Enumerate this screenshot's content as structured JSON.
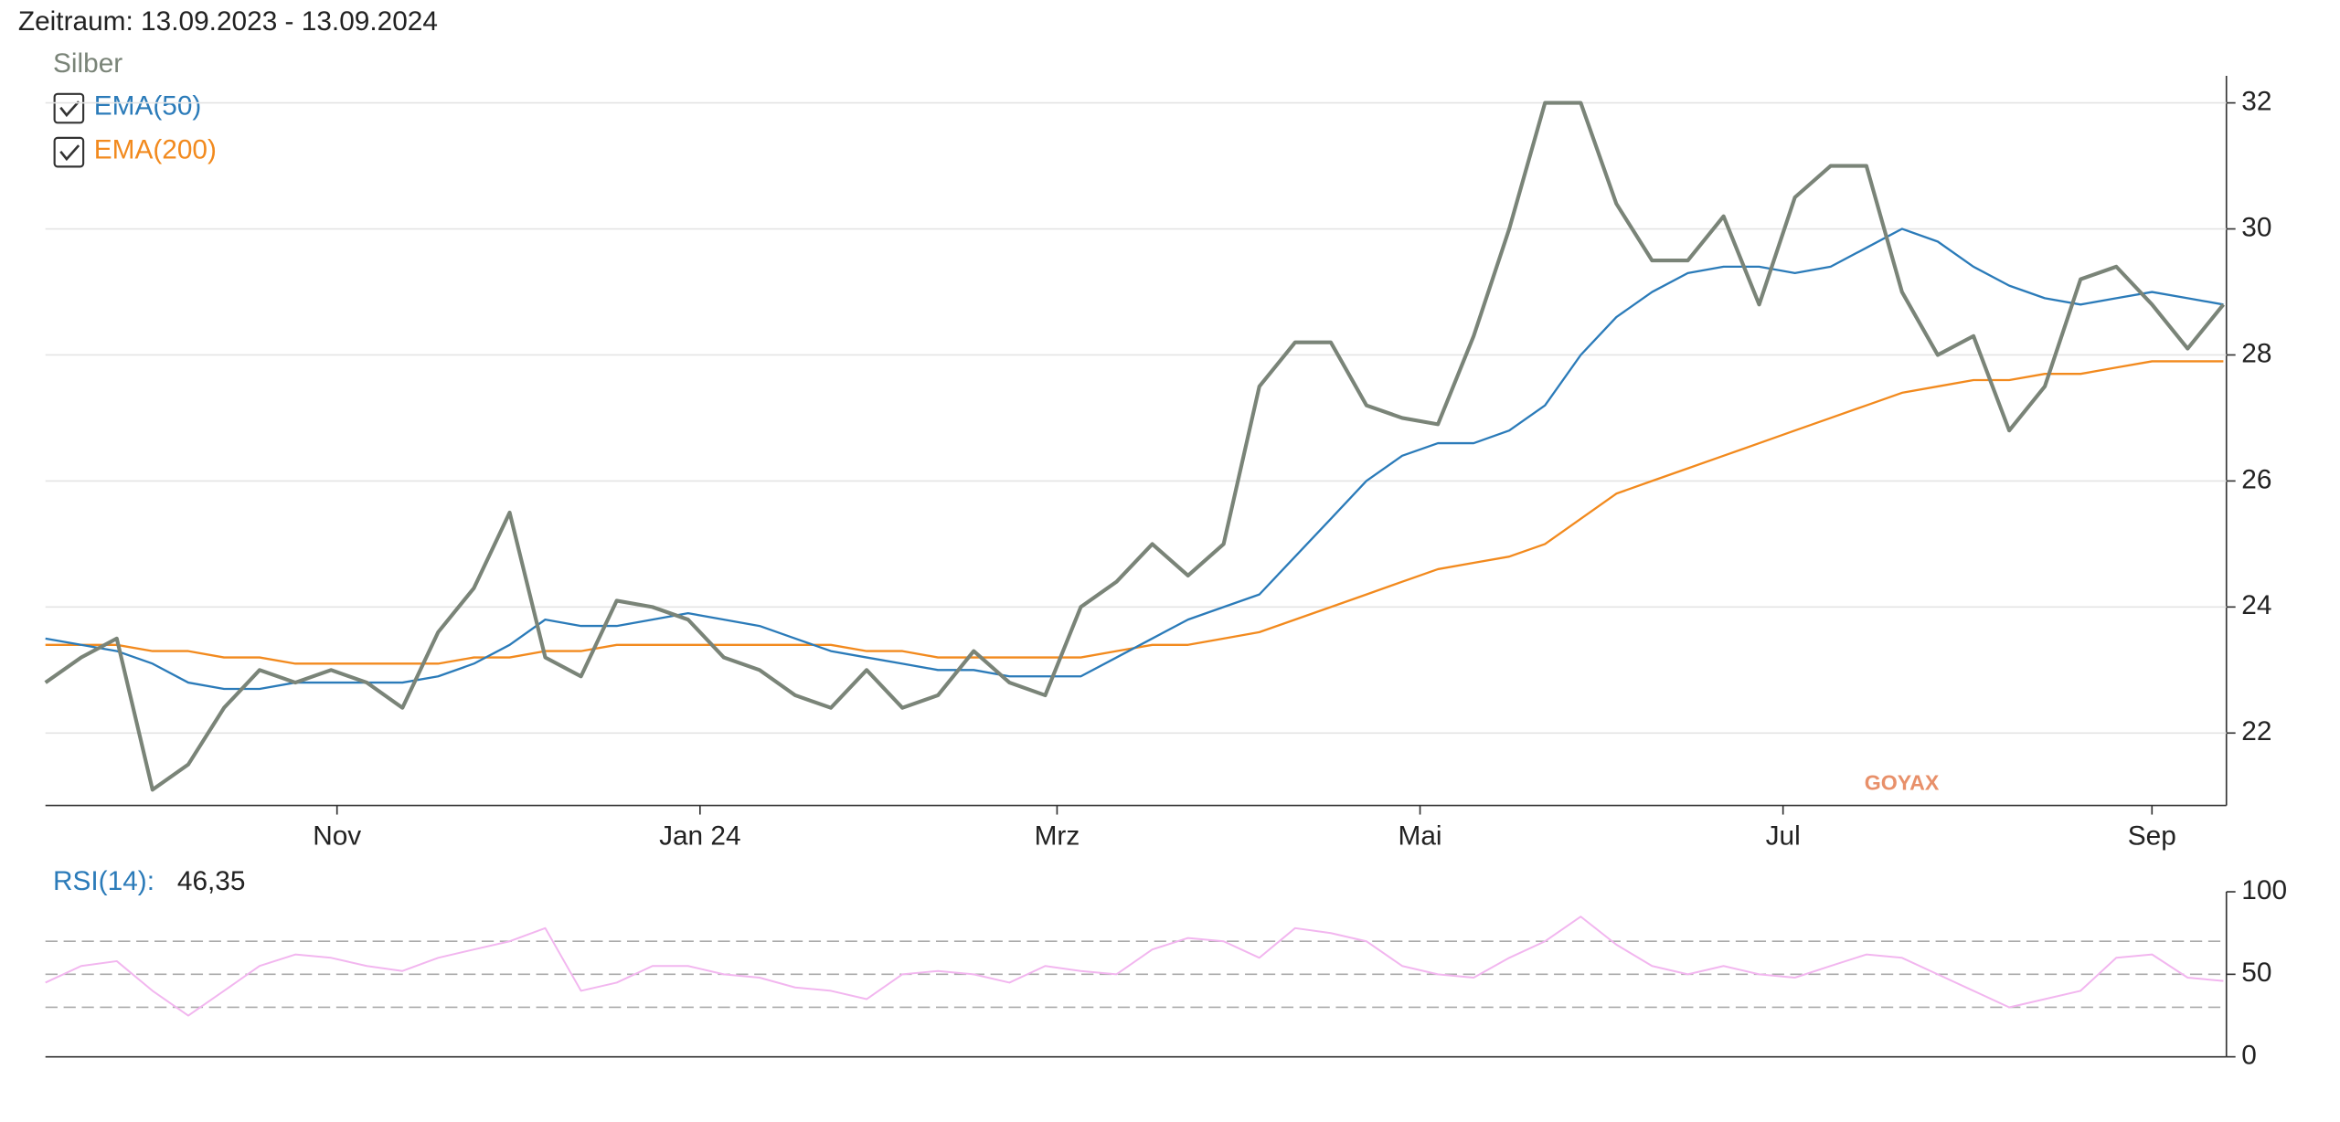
{
  "chart_data": [
    {
      "type": "line",
      "title": "Zeitraum: 13.09.2023 - 13.09.2024",
      "watermark": "GOYAX",
      "x": [
        0,
        6,
        12,
        18,
        24,
        30,
        36,
        42,
        48,
        54,
        60,
        66,
        72,
        78,
        84,
        90,
        96,
        102,
        108,
        114,
        120,
        126,
        132,
        138,
        144,
        150,
        156,
        162,
        168,
        174,
        180,
        186,
        192,
        198,
        204,
        210,
        216,
        222,
        228,
        234,
        240,
        246,
        252,
        258,
        264,
        270,
        276,
        282,
        288,
        294,
        300,
        306,
        312,
        318,
        324,
        330,
        336,
        342,
        348,
        354,
        360,
        366
      ],
      "xlim": [
        0,
        366
      ],
      "xticks": [
        {
          "value": 49,
          "label": "Nov"
        },
        {
          "value": 110,
          "label": "Jan 24"
        },
        {
          "value": 170,
          "label": "Mrz"
        },
        {
          "value": 231,
          "label": "Mai"
        },
        {
          "value": 292,
          "label": "Jul"
        },
        {
          "value": 354,
          "label": "Sep"
        }
      ],
      "ylim": [
        20.85,
        32.43
      ],
      "yticks": [
        22,
        24,
        26,
        28,
        30,
        32
      ],
      "grid": true,
      "series": [
        {
          "name": "Silber",
          "color": "#7a8478",
          "values": [
            22.8,
            23.2,
            23.5,
            21.1,
            21.5,
            22.4,
            23.0,
            22.8,
            23.0,
            22.8,
            22.4,
            23.6,
            24.3,
            25.5,
            23.2,
            22.9,
            24.1,
            24.0,
            23.8,
            23.2,
            23.0,
            22.6,
            22.4,
            23.0,
            22.4,
            22.6,
            23.3,
            22.8,
            22.6,
            24.0,
            24.4,
            25.0,
            24.5,
            25.0,
            27.5,
            28.2,
            28.2,
            27.2,
            27.0,
            26.9,
            28.3,
            30.0,
            32.0,
            32.0,
            30.4,
            29.5,
            29.5,
            30.2,
            28.8,
            30.5,
            31.0,
            31.0,
            29.0,
            28.0,
            28.3,
            26.8,
            27.5,
            29.2,
            29.4,
            28.8,
            28.1,
            28.8
          ]
        },
        {
          "name": "EMA(50)",
          "color": "#2b7bb9",
          "values": [
            23.5,
            23.4,
            23.3,
            23.1,
            22.8,
            22.7,
            22.7,
            22.8,
            22.8,
            22.8,
            22.8,
            22.9,
            23.1,
            23.4,
            23.8,
            23.7,
            23.7,
            23.8,
            23.9,
            23.8,
            23.7,
            23.5,
            23.3,
            23.2,
            23.1,
            23.0,
            23.0,
            22.9,
            22.9,
            22.9,
            23.2,
            23.5,
            23.8,
            24.0,
            24.2,
            24.8,
            25.4,
            26.0,
            26.4,
            26.6,
            26.6,
            26.8,
            27.2,
            28.0,
            28.6,
            29.0,
            29.3,
            29.4,
            29.4,
            29.3,
            29.4,
            29.7,
            30.0,
            29.8,
            29.4,
            29.1,
            28.9,
            28.8,
            28.9,
            29.0,
            28.9,
            28.8
          ]
        },
        {
          "name": "EMA(200)",
          "color": "#f28a1e",
          "values": [
            23.4,
            23.4,
            23.4,
            23.3,
            23.3,
            23.2,
            23.2,
            23.1,
            23.1,
            23.1,
            23.1,
            23.1,
            23.2,
            23.2,
            23.3,
            23.3,
            23.4,
            23.4,
            23.4,
            23.4,
            23.4,
            23.4,
            23.4,
            23.3,
            23.3,
            23.2,
            23.2,
            23.2,
            23.2,
            23.2,
            23.3,
            23.4,
            23.4,
            23.5,
            23.6,
            23.8,
            24.0,
            24.2,
            24.4,
            24.6,
            24.7,
            24.8,
            25.0,
            25.4,
            25.8,
            26.0,
            26.2,
            26.4,
            26.6,
            26.8,
            27.0,
            27.2,
            27.4,
            27.5,
            27.6,
            27.6,
            27.7,
            27.7,
            27.8,
            27.9,
            27.9,
            27.9
          ]
        }
      ]
    },
    {
      "type": "line",
      "title": "RSI(14):",
      "annotation": "46,35",
      "xlim": [
        0,
        366
      ],
      "ylim": [
        0,
        100
      ],
      "yticks": [
        0,
        50,
        100
      ],
      "reference_lines": [
        30,
        50,
        70
      ],
      "x": [
        0,
        6,
        12,
        18,
        24,
        30,
        36,
        42,
        48,
        54,
        60,
        66,
        72,
        78,
        84,
        90,
        96,
        102,
        108,
        114,
        120,
        126,
        132,
        138,
        144,
        150,
        156,
        162,
        168,
        174,
        180,
        186,
        192,
        198,
        204,
        210,
        216,
        222,
        228,
        234,
        240,
        246,
        252,
        258,
        264,
        270,
        276,
        282,
        288,
        294,
        300,
        306,
        312,
        318,
        324,
        330,
        336,
        342,
        348,
        354,
        360,
        366
      ],
      "series": [
        {
          "name": "RSI(14)",
          "color": "#f2b6ef",
          "values": [
            45,
            55,
            58,
            40,
            25,
            40,
            55,
            62,
            60,
            55,
            52,
            60,
            65,
            70,
            78,
            40,
            45,
            55,
            55,
            50,
            48,
            42,
            40,
            35,
            50,
            52,
            50,
            45,
            55,
            52,
            50,
            65,
            72,
            70,
            60,
            78,
            75,
            70,
            55,
            50,
            48,
            60,
            70,
            85,
            68,
            55,
            50,
            55,
            50,
            48,
            55,
            62,
            60,
            50,
            40,
            30,
            35,
            40,
            60,
            62,
            48,
            46
          ]
        }
      ]
    }
  ]
}
